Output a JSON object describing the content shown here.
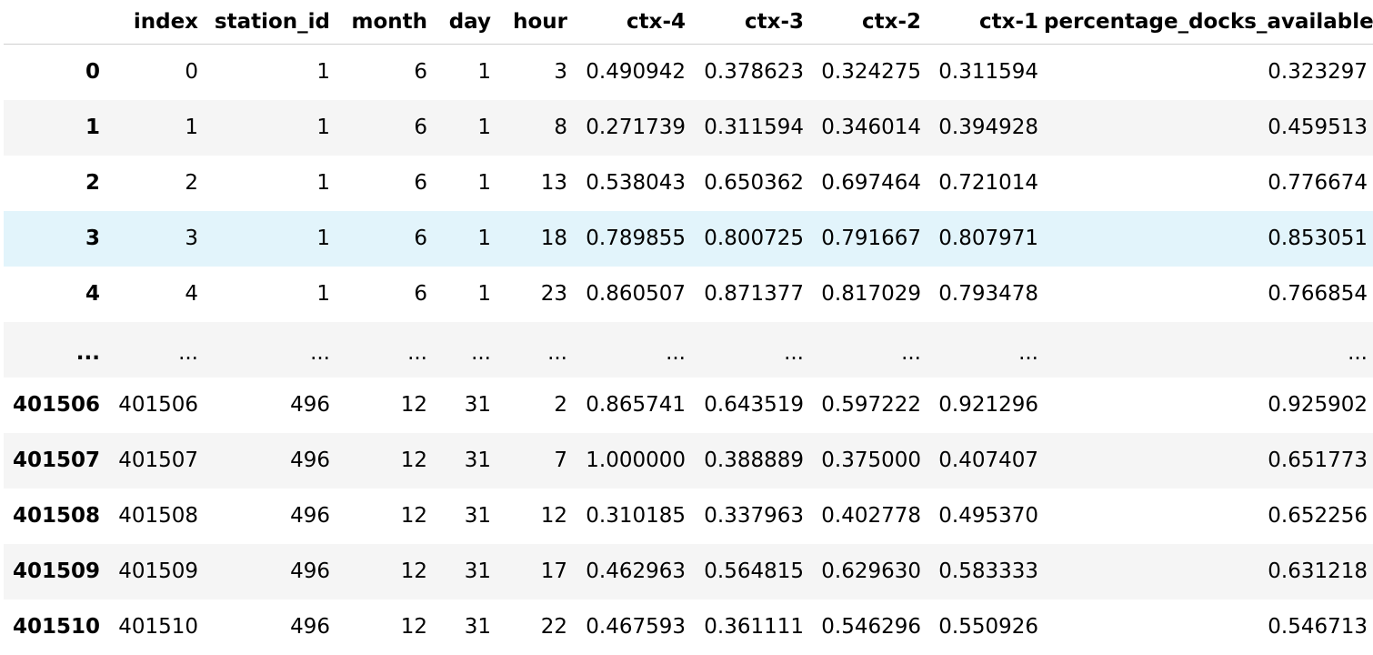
{
  "table": {
    "columns": [
      "index",
      "station_id",
      "month",
      "day",
      "hour",
      "ctx-4",
      "ctx-3",
      "ctx-2",
      "ctx-1",
      "percentage_docks_available"
    ],
    "rows": [
      {
        "idx": "0",
        "cells": [
          "0",
          "1",
          "6",
          "1",
          "3",
          "0.490942",
          "0.378623",
          "0.324275",
          "0.311594",
          "0.323297"
        ]
      },
      {
        "idx": "1",
        "cells": [
          "1",
          "1",
          "6",
          "1",
          "8",
          "0.271739",
          "0.311594",
          "0.346014",
          "0.394928",
          "0.459513"
        ]
      },
      {
        "idx": "2",
        "cells": [
          "2",
          "1",
          "6",
          "1",
          "13",
          "0.538043",
          "0.650362",
          "0.697464",
          "0.721014",
          "0.776674"
        ]
      },
      {
        "idx": "3",
        "cells": [
          "3",
          "1",
          "6",
          "1",
          "18",
          "0.789855",
          "0.800725",
          "0.791667",
          "0.807971",
          "0.853051"
        ]
      },
      {
        "idx": "4",
        "cells": [
          "4",
          "1",
          "6",
          "1",
          "23",
          "0.860507",
          "0.871377",
          "0.817029",
          "0.793478",
          "0.766854"
        ]
      },
      {
        "idx": "...",
        "cells": [
          "...",
          "...",
          "...",
          "...",
          "...",
          "...",
          "...",
          "...",
          "...",
          "..."
        ]
      },
      {
        "idx": "401506",
        "cells": [
          "401506",
          "496",
          "12",
          "31",
          "2",
          "0.865741",
          "0.643519",
          "0.597222",
          "0.921296",
          "0.925902"
        ]
      },
      {
        "idx": "401507",
        "cells": [
          "401507",
          "496",
          "12",
          "31",
          "7",
          "1.000000",
          "0.388889",
          "0.375000",
          "0.407407",
          "0.651773"
        ]
      },
      {
        "idx": "401508",
        "cells": [
          "401508",
          "496",
          "12",
          "31",
          "12",
          "0.310185",
          "0.337963",
          "0.402778",
          "0.495370",
          "0.652256"
        ]
      },
      {
        "idx": "401509",
        "cells": [
          "401509",
          "496",
          "12",
          "31",
          "17",
          "0.462963",
          "0.564815",
          "0.629630",
          "0.583333",
          "0.631218"
        ]
      },
      {
        "idx": "401510",
        "cells": [
          "401510",
          "496",
          "12",
          "31",
          "22",
          "0.467593",
          "0.361111",
          "0.546296",
          "0.550926",
          "0.546713"
        ]
      }
    ]
  },
  "colors": {
    "stripe": "#f5f5f5",
    "hover_row": "#e2f4fb",
    "header_border": "#cfcfcf"
  }
}
